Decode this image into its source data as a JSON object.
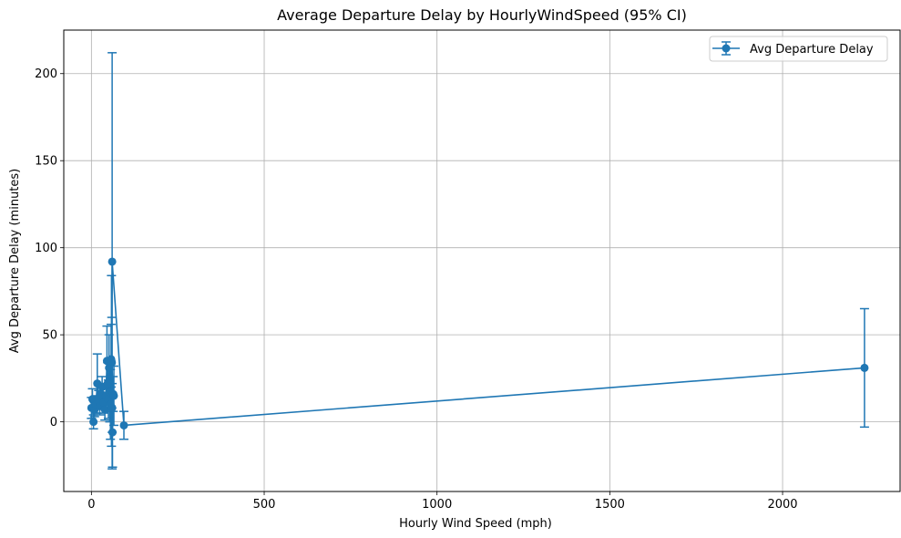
{
  "chart_data": {
    "type": "line",
    "title": "Average Departure Delay by HourlyWindSpeed (95% CI)",
    "xlabel": "Hourly Wind Speed (mph)",
    "ylabel": "Avg Departure Delay (minutes)",
    "xlim": [
      -80,
      2340
    ],
    "ylim": [
      -40,
      225
    ],
    "xticks": [
      0,
      500,
      1000,
      1500,
      2000
    ],
    "yticks": [
      0,
      50,
      100,
      150,
      200
    ],
    "grid": true,
    "legend_position": "top-right",
    "series_color": "#1f77b4",
    "series": [
      {
        "name": "Avg Departure Delay",
        "points": [
          {
            "x": 0,
            "y": 8,
            "lo": 2,
            "hi": 14
          },
          {
            "x": 3,
            "y": 13,
            "lo": 7,
            "hi": 19
          },
          {
            "x": 6,
            "y": 0,
            "lo": -4,
            "hi": 4
          },
          {
            "x": 9,
            "y": 7,
            "lo": 3,
            "hi": 11
          },
          {
            "x": 13,
            "y": 10,
            "lo": 5,
            "hi": 15
          },
          {
            "x": 17,
            "y": 22,
            "lo": 5,
            "hi": 39
          },
          {
            "x": 21,
            "y": 13,
            "lo": 8,
            "hi": 18
          },
          {
            "x": 24,
            "y": 9,
            "lo": 4,
            "hi": 14
          },
          {
            "x": 28,
            "y": 16,
            "lo": 10,
            "hi": 22
          },
          {
            "x": 31,
            "y": 20,
            "lo": 14,
            "hi": 26
          },
          {
            "x": 35,
            "y": 11,
            "lo": 5,
            "hi": 17
          },
          {
            "x": 39,
            "y": 7,
            "lo": 1,
            "hi": 13
          },
          {
            "x": 42,
            "y": 15,
            "lo": 8,
            "hi": 22
          },
          {
            "x": 45,
            "y": 35,
            "lo": 15,
            "hi": 55
          },
          {
            "x": 47,
            "y": 22,
            "lo": 10,
            "hi": 34
          },
          {
            "x": 49,
            "y": 13,
            "lo": 2,
            "hi": 24
          },
          {
            "x": 51,
            "y": 31,
            "lo": 12,
            "hi": 50
          },
          {
            "x": 53,
            "y": 17,
            "lo": 0,
            "hi": 34
          },
          {
            "x": 55,
            "y": 10,
            "lo": -10,
            "hi": 30
          },
          {
            "x": 57,
            "y": 36,
            "lo": 20,
            "hi": 56
          },
          {
            "x": 59,
            "y": 34,
            "lo": 8,
            "hi": 60
          },
          {
            "x": 60,
            "y": 8,
            "lo": -6,
            "hi": 22
          },
          {
            "x": 61,
            "y": -6,
            "lo": -26,
            "hi": 14
          },
          {
            "x": 63,
            "y": 16,
            "lo": 6,
            "hi": 26
          },
          {
            "x": 65,
            "y": 15,
            "lo": -2,
            "hi": 32
          },
          {
            "x": 58,
            "y": 35,
            "lo": -14,
            "hi": 84
          },
          {
            "x": 60,
            "y": 92,
            "lo": -27,
            "hi": 212
          },
          {
            "x": 94,
            "y": -2,
            "lo": -10,
            "hi": 6
          },
          {
            "x": 2237,
            "y": 31,
            "lo": -3,
            "hi": 65
          }
        ]
      }
    ]
  }
}
